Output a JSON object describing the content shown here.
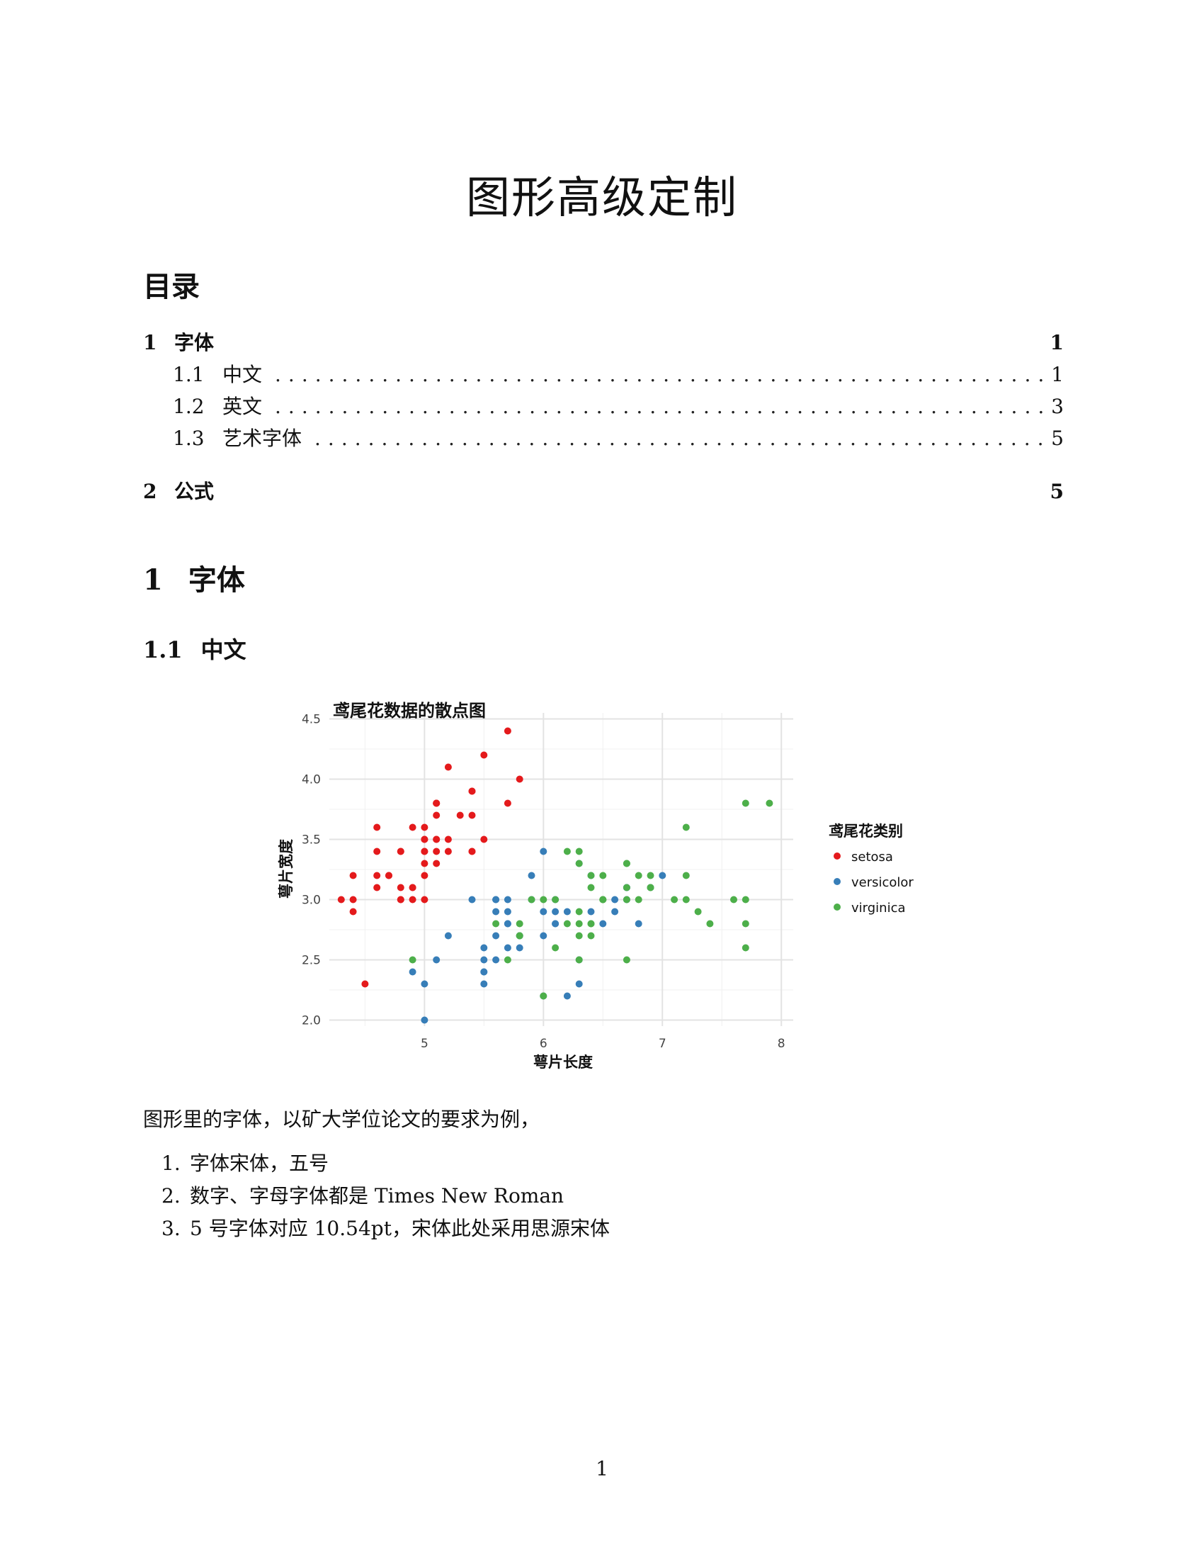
{
  "document": {
    "title": "图形高级定制",
    "toc_heading": "目录",
    "toc": [
      {
        "number": "1",
        "title": "字体",
        "page": "1",
        "level": 1
      },
      {
        "number": "1.1",
        "title": "中文",
        "page": "1",
        "level": 2
      },
      {
        "number": "1.2",
        "title": "英文",
        "page": "3",
        "level": 2
      },
      {
        "number": "1.3",
        "title": "艺术字体",
        "page": "5",
        "level": 2
      },
      {
        "number": "2",
        "title": "公式",
        "page": "5",
        "level": 1
      }
    ],
    "section": {
      "number": "1",
      "title": "字体"
    },
    "subsection": {
      "number": "1.1",
      "title": "中文"
    },
    "paragraph": "图形里的字体，以矿大学位论文的要求为例，",
    "list": [
      {
        "marker": "1.",
        "text": "字体宋体，五号"
      },
      {
        "marker": "2.",
        "text": "数字、字母字体都是 Times New Roman"
      },
      {
        "marker": "3.",
        "text": "5 号字体对应 10.54pt，宋体此处采用思源宋体"
      }
    ],
    "page_number": "1"
  },
  "chart_data": {
    "type": "scatter",
    "title": "鸢尾花数据的散点图",
    "xlabel": "萼片长度",
    "ylabel": "萼片宽度",
    "xlim": [
      4.2,
      8.1
    ],
    "ylim": [
      1.95,
      4.55
    ],
    "xticks": [
      5,
      6,
      7,
      8
    ],
    "yticks": [
      2.0,
      2.5,
      3.0,
      3.5,
      4.0,
      4.5
    ],
    "grid": true,
    "legend": {
      "title": "鸢尾花类别",
      "position": "right"
    },
    "series": [
      {
        "name": "setosa",
        "color": "#e41a1c",
        "points": [
          [
            5.1,
            3.5
          ],
          [
            4.9,
            3.0
          ],
          [
            4.7,
            3.2
          ],
          [
            4.6,
            3.1
          ],
          [
            5.0,
            3.6
          ],
          [
            5.4,
            3.9
          ],
          [
            4.6,
            3.4
          ],
          [
            5.0,
            3.4
          ],
          [
            4.4,
            2.9
          ],
          [
            4.9,
            3.1
          ],
          [
            5.4,
            3.7
          ],
          [
            4.8,
            3.4
          ],
          [
            4.8,
            3.0
          ],
          [
            4.3,
            3.0
          ],
          [
            5.8,
            4.0
          ],
          [
            5.7,
            4.4
          ],
          [
            5.4,
            3.9
          ],
          [
            5.1,
            3.5
          ],
          [
            5.7,
            3.8
          ],
          [
            5.1,
            3.8
          ],
          [
            5.4,
            3.4
          ],
          [
            5.1,
            3.7
          ],
          [
            4.6,
            3.6
          ],
          [
            5.1,
            3.3
          ],
          [
            4.8,
            3.4
          ],
          [
            5.0,
            3.0
          ],
          [
            5.0,
            3.4
          ],
          [
            5.2,
            3.5
          ],
          [
            5.2,
            3.4
          ],
          [
            4.7,
            3.2
          ],
          [
            4.8,
            3.1
          ],
          [
            5.4,
            3.4
          ],
          [
            5.2,
            4.1
          ],
          [
            5.5,
            4.2
          ],
          [
            4.9,
            3.1
          ],
          [
            5.0,
            3.2
          ],
          [
            5.5,
            3.5
          ],
          [
            4.9,
            3.6
          ],
          [
            4.4,
            3.0
          ],
          [
            5.1,
            3.4
          ],
          [
            5.0,
            3.5
          ],
          [
            4.5,
            2.3
          ],
          [
            4.4,
            3.2
          ],
          [
            5.0,
            3.5
          ],
          [
            5.1,
            3.8
          ],
          [
            4.8,
            3.0
          ],
          [
            5.1,
            3.8
          ],
          [
            4.6,
            3.2
          ],
          [
            5.3,
            3.7
          ],
          [
            5.0,
            3.3
          ]
        ]
      },
      {
        "name": "versicolor",
        "color": "#377eb8",
        "points": [
          [
            7.0,
            3.2
          ],
          [
            6.4,
            3.2
          ],
          [
            6.9,
            3.1
          ],
          [
            5.5,
            2.3
          ],
          [
            6.5,
            2.8
          ],
          [
            5.7,
            2.8
          ],
          [
            6.3,
            3.3
          ],
          [
            4.9,
            2.4
          ],
          [
            6.6,
            2.9
          ],
          [
            5.2,
            2.7
          ],
          [
            5.0,
            2.0
          ],
          [
            5.9,
            3.0
          ],
          [
            6.0,
            2.2
          ],
          [
            6.1,
            2.9
          ],
          [
            5.6,
            2.9
          ],
          [
            6.7,
            3.1
          ],
          [
            5.6,
            3.0
          ],
          [
            5.8,
            2.7
          ],
          [
            6.2,
            2.2
          ],
          [
            5.6,
            2.5
          ],
          [
            5.9,
            3.2
          ],
          [
            6.1,
            2.8
          ],
          [
            6.3,
            2.5
          ],
          [
            6.1,
            2.8
          ],
          [
            6.4,
            2.9
          ],
          [
            6.6,
            3.0
          ],
          [
            6.8,
            2.8
          ],
          [
            6.7,
            3.0
          ],
          [
            6.0,
            2.9
          ],
          [
            5.7,
            2.6
          ],
          [
            5.5,
            2.4
          ],
          [
            5.5,
            2.4
          ],
          [
            5.8,
            2.7
          ],
          [
            6.0,
            2.7
          ],
          [
            5.4,
            3.0
          ],
          [
            6.0,
            3.4
          ],
          [
            6.7,
            3.1
          ],
          [
            6.3,
            2.3
          ],
          [
            5.6,
            3.0
          ],
          [
            5.5,
            2.5
          ],
          [
            5.5,
            2.6
          ],
          [
            6.1,
            3.0
          ],
          [
            5.8,
            2.6
          ],
          [
            5.0,
            2.3
          ],
          [
            5.6,
            2.7
          ],
          [
            5.7,
            3.0
          ],
          [
            5.7,
            2.9
          ],
          [
            6.2,
            2.9
          ],
          [
            5.1,
            2.5
          ],
          [
            5.7,
            2.8
          ]
        ]
      },
      {
        "name": "virginica",
        "color": "#4daf4a",
        "points": [
          [
            6.3,
            3.3
          ],
          [
            5.8,
            2.7
          ],
          [
            7.1,
            3.0
          ],
          [
            6.3,
            2.9
          ],
          [
            6.5,
            3.0
          ],
          [
            7.6,
            3.0
          ],
          [
            4.9,
            2.5
          ],
          [
            7.3,
            2.9
          ],
          [
            6.7,
            2.5
          ],
          [
            7.2,
            3.6
          ],
          [
            6.5,
            3.2
          ],
          [
            6.4,
            2.7
          ],
          [
            6.8,
            3.0
          ],
          [
            5.7,
            2.5
          ],
          [
            5.8,
            2.8
          ],
          [
            6.4,
            3.2
          ],
          [
            6.5,
            3.0
          ],
          [
            7.7,
            3.8
          ],
          [
            7.7,
            2.6
          ],
          [
            6.0,
            2.2
          ],
          [
            6.9,
            3.2
          ],
          [
            5.6,
            2.8
          ],
          [
            7.7,
            2.8
          ],
          [
            6.3,
            2.7
          ],
          [
            6.7,
            3.3
          ],
          [
            7.2,
            3.2
          ],
          [
            6.2,
            2.8
          ],
          [
            6.1,
            3.0
          ],
          [
            6.4,
            2.8
          ],
          [
            7.2,
            3.0
          ],
          [
            7.4,
            2.8
          ],
          [
            7.9,
            3.8
          ],
          [
            6.4,
            2.8
          ],
          [
            6.3,
            2.8
          ],
          [
            6.1,
            2.6
          ],
          [
            7.7,
            3.0
          ],
          [
            6.3,
            3.4
          ],
          [
            6.4,
            3.1
          ],
          [
            6.0,
            3.0
          ],
          [
            6.9,
            3.1
          ],
          [
            6.7,
            3.1
          ],
          [
            6.9,
            3.1
          ],
          [
            5.8,
            2.7
          ],
          [
            6.8,
            3.2
          ],
          [
            6.7,
            3.3
          ],
          [
            6.7,
            3.0
          ],
          [
            6.3,
            2.5
          ],
          [
            6.5,
            3.0
          ],
          [
            6.2,
            3.4
          ],
          [
            5.9,
            3.0
          ]
        ]
      }
    ]
  }
}
